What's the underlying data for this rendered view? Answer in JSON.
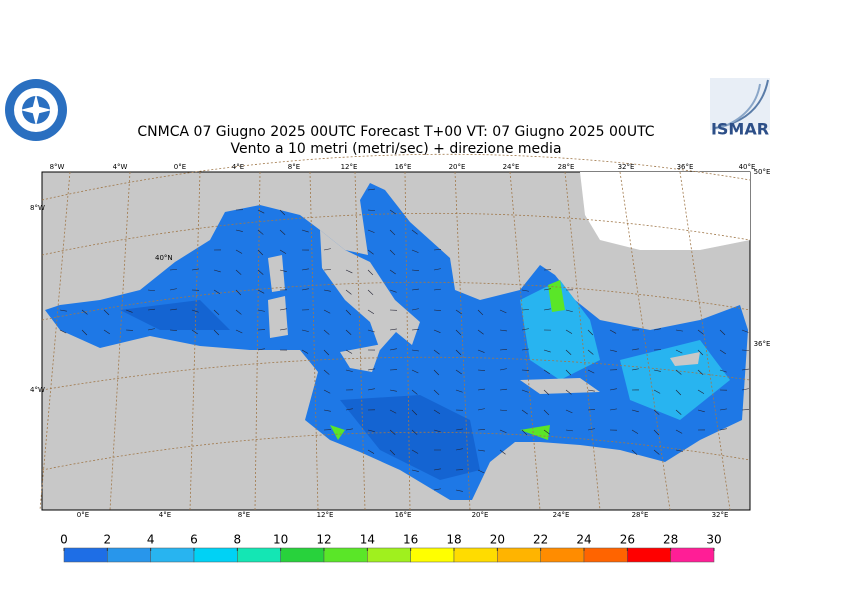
{
  "header": {
    "title": "CNMCA 07   Giugno  2025 00UTC Forecast T+00 VT: 07   Giugno  2025 00UTC",
    "subtitle": "Vento a 10 metri (metri/sec) + direzione media",
    "logo_text": "ISMAR"
  },
  "map": {
    "top_labels": [
      "8°W",
      "4°W",
      "0°E",
      "4°E",
      "8°E",
      "12°E",
      "16°E",
      "20°E",
      "24°E",
      "28°E",
      "32°E",
      "36°E",
      "40°E"
    ],
    "left_labels": [
      "8°W",
      "40°N",
      "4°W"
    ],
    "right_labels": [
      "50°E",
      "36°E"
    ],
    "bottom_labels": [
      "0°E",
      "4°E",
      "8°E",
      "12°E",
      "16°E",
      "20°E",
      "24°E",
      "28°E",
      "32°E"
    ]
  },
  "colorbar": {
    "ticks": [
      0,
      2,
      4,
      6,
      8,
      10,
      12,
      14,
      16,
      18,
      20,
      22,
      24,
      26,
      28,
      30
    ],
    "colors": [
      "#1e6ee6",
      "#2896eb",
      "#28b4f0",
      "#00d2f5",
      "#14e6b4",
      "#28d23c",
      "#5ae628",
      "#a0f01e",
      "#ffff00",
      "#ffdc00",
      "#ffb400",
      "#ff8c00",
      "#ff6400",
      "#ff0000",
      "#ff1e96"
    ]
  }
}
